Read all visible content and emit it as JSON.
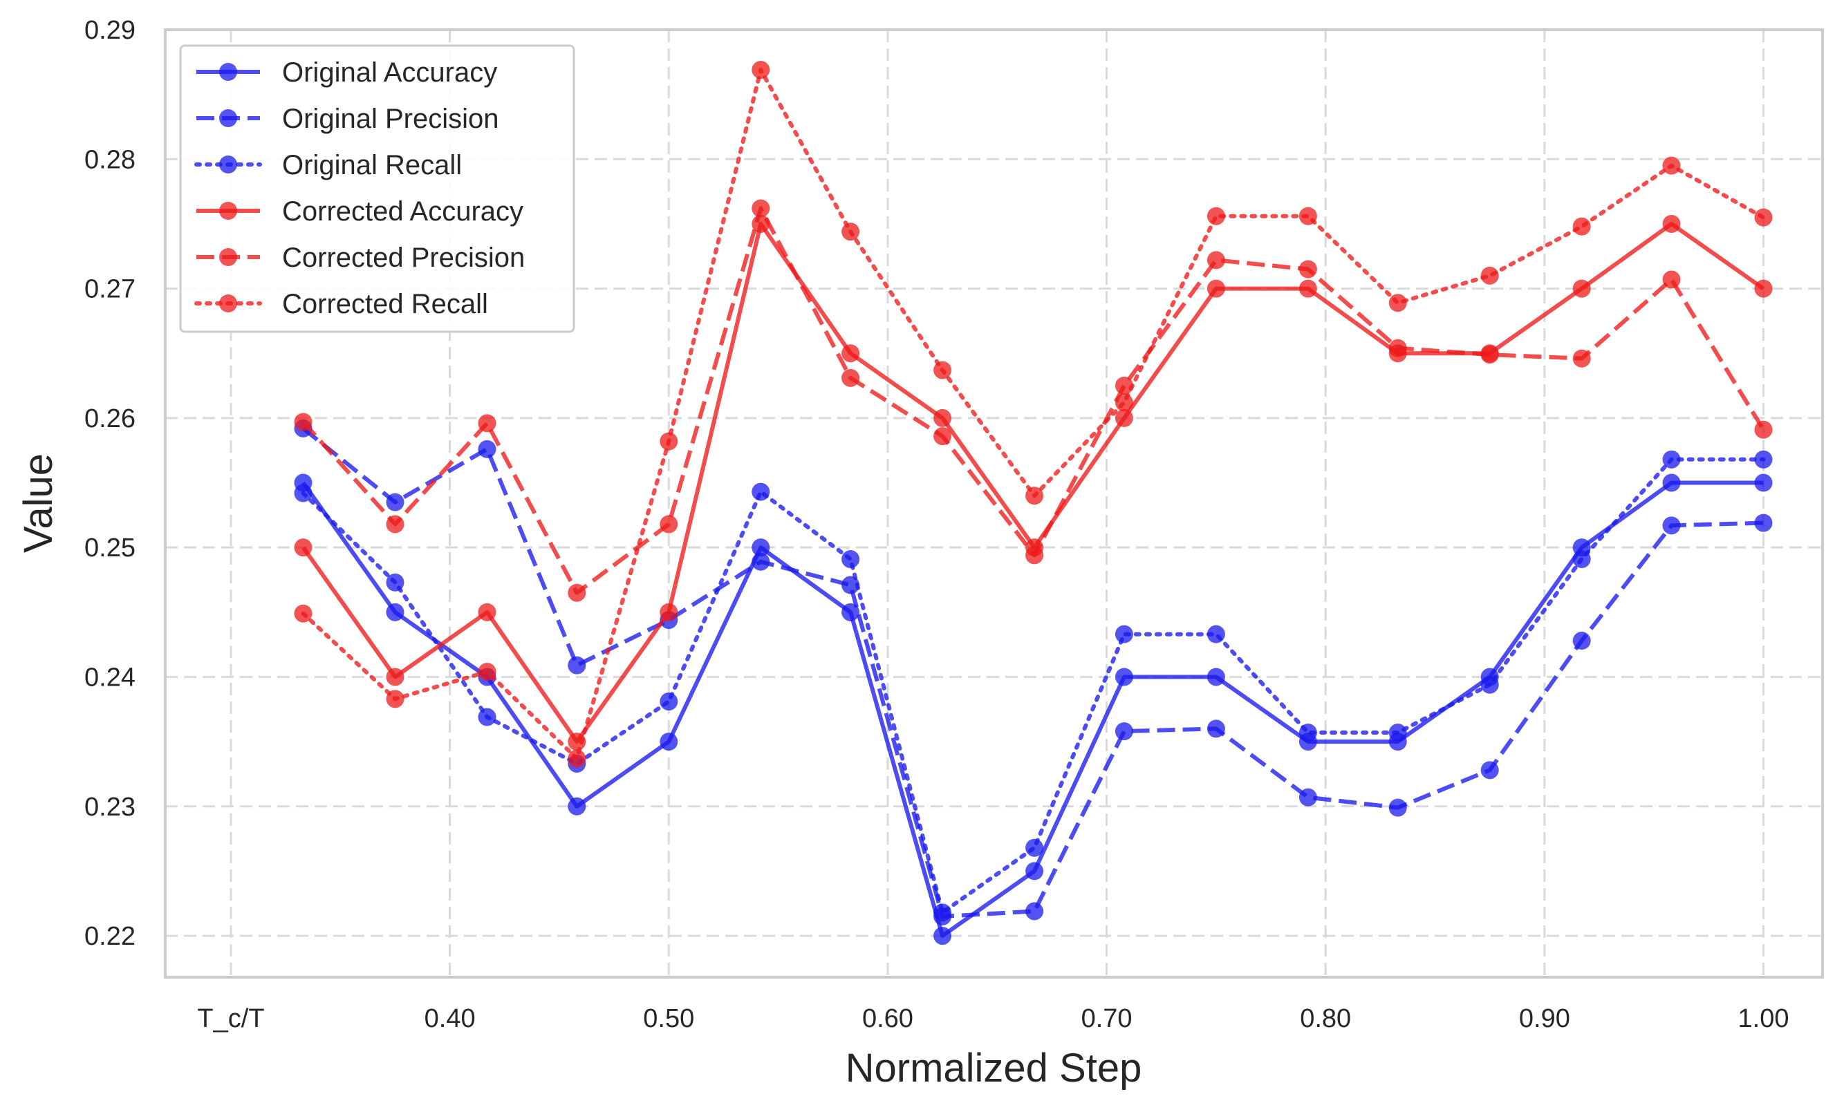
{
  "chart_data": {
    "type": "line",
    "title": "",
    "xlabel": "Normalized Step",
    "ylabel": "Value",
    "xlim": [
      0.27,
      1.027
    ],
    "ylim": [
      0.2168,
      0.29
    ],
    "x_tick_values": [
      0.3,
      0.4,
      0.5,
      0.6,
      0.7,
      0.8,
      0.9,
      1.0
    ],
    "x_tick_labels": [
      "T_c/T",
      "0.40",
      "0.50",
      "0.60",
      "0.70",
      "0.80",
      "0.90",
      "1.00"
    ],
    "y_tick_values": [
      0.22,
      0.23,
      0.24,
      0.25,
      0.26,
      0.27,
      0.28,
      0.29
    ],
    "y_tick_labels": [
      "0.22",
      "0.23",
      "0.24",
      "0.25",
      "0.26",
      "0.27",
      "0.28",
      "0.29"
    ],
    "grid": true,
    "legend_position": "upper-left",
    "x": [
      0.333,
      0.375,
      0.417,
      0.458,
      0.5,
      0.542,
      0.583,
      0.625,
      0.667,
      0.708,
      0.75,
      0.792,
      0.833,
      0.875,
      0.917,
      0.958,
      1.0
    ],
    "series": [
      {
        "name": "Original Accuracy",
        "color": "#1a1aee",
        "dash": "solid",
        "values": [
          0.255,
          0.245,
          0.24,
          0.23,
          0.235,
          0.25,
          0.245,
          0.22,
          0.225,
          0.24,
          0.24,
          0.235,
          0.235,
          0.24,
          0.25,
          0.255,
          0.255
        ]
      },
      {
        "name": "Original Precision",
        "color": "#1a1aee",
        "dash": "dashed",
        "values": [
          0.2592,
          0.2535,
          0.2576,
          0.2409,
          0.2444,
          0.2489,
          0.2471,
          0.2215,
          0.2219,
          0.2358,
          0.236,
          0.2307,
          0.2299,
          0.2328,
          0.2428,
          0.2517,
          0.2519
        ]
      },
      {
        "name": "Original Recall",
        "color": "#1a1aee",
        "dash": "dotted",
        "values": [
          0.2542,
          0.2473,
          0.2369,
          0.2333,
          0.2381,
          0.2543,
          0.2491,
          0.2218,
          0.2268,
          0.2433,
          0.2433,
          0.2357,
          0.2357,
          0.2394,
          0.2491,
          0.2568,
          0.2568
        ]
      },
      {
        "name": "Corrected Accuracy",
        "color": "#ee1a1a",
        "dash": "solid",
        "values": [
          0.25,
          0.24,
          0.245,
          0.235,
          0.245,
          0.275,
          0.265,
          0.26,
          0.25,
          0.26,
          0.27,
          0.27,
          0.265,
          0.265,
          0.27,
          0.275,
          0.27
        ]
      },
      {
        "name": "Corrected Precision",
        "color": "#ee1a1a",
        "dash": "dashed",
        "values": [
          0.2597,
          0.2518,
          0.2596,
          0.2465,
          0.2518,
          0.2762,
          0.2631,
          0.2586,
          0.2494,
          0.2625,
          0.2722,
          0.2715,
          0.2654,
          0.2649,
          0.2646,
          0.2707,
          0.2591
        ]
      },
      {
        "name": "Corrected Recall",
        "color": "#ee1a1a",
        "dash": "dotted",
        "values": [
          0.2449,
          0.2383,
          0.2404,
          0.2337,
          0.2582,
          0.2869,
          0.2744,
          0.2637,
          0.254,
          0.2612,
          0.2756,
          0.2756,
          0.2689,
          0.271,
          0.2748,
          0.2795,
          0.2755
        ]
      }
    ]
  }
}
